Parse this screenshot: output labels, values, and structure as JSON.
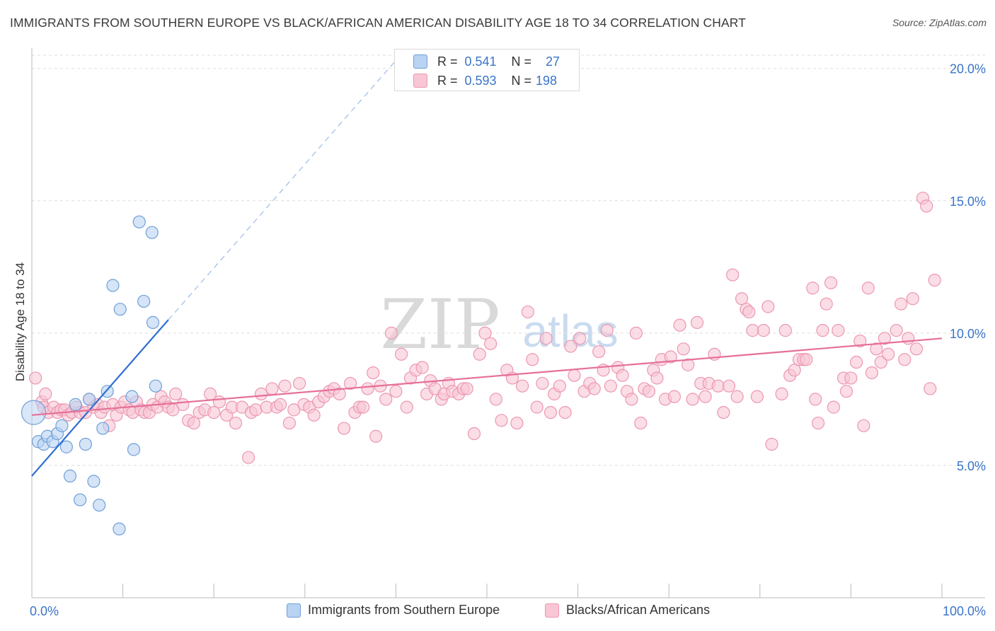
{
  "header": {
    "title": "IMMIGRANTS FROM SOUTHERN EUROPE VS BLACK/AFRICAN AMERICAN DISABILITY AGE 18 TO 34 CORRELATION CHART",
    "source": "Source: ZipAtlas.com"
  },
  "watermark": {
    "text_zip": "ZIP",
    "text_atlas": "atlas"
  },
  "legend": {
    "r_label": "R =",
    "n_label": "N =",
    "rows": [
      {
        "r": "0.541",
        "n": "27"
      },
      {
        "r": "0.593",
        "n": "198"
      }
    ]
  },
  "colors": {
    "blue_fill": "#b9d3f2",
    "blue_stroke": "#6f9fd8",
    "blue_line": "#2f6fd0",
    "pink_fill": "#f8c6d5",
    "pink_stroke": "#ec97b1",
    "pink_line": "#e66f98",
    "axis_value": "#3a74c9",
    "grid": "#dddddd"
  },
  "chart_data": {
    "type": "scatter",
    "title": "IMMIGRANTS FROM SOUTHERN EUROPE VS BLACK/AFRICAN AMERICAN DISABILITY AGE 18 TO 34 CORRELATION CHART",
    "xlabel": "",
    "ylabel": "Disability Age 18 to 34",
    "xlim": [
      0,
      100
    ],
    "ylim": [
      0,
      20.5
    ],
    "x_tick_labels": [
      {
        "value": 0,
        "label": "0.0%"
      },
      {
        "value": 100,
        "label": "100.0%"
      }
    ],
    "y_tick_labels": [
      {
        "value": 5,
        "label": "5.0%"
      },
      {
        "value": 10,
        "label": "10.0%"
      },
      {
        "value": 15,
        "label": "15.0%"
      },
      {
        "value": 20,
        "label": "20.0%"
      }
    ],
    "series": [
      {
        "name": "Immigrants from Southern Europe",
        "color": "blue",
        "points": [
          [
            0.2,
            7.0
          ],
          [
            0.7,
            5.9
          ],
          [
            1.3,
            5.8
          ],
          [
            1.7,
            6.1
          ],
          [
            2.3,
            5.9
          ],
          [
            2.8,
            6.2
          ],
          [
            3.3,
            6.5
          ],
          [
            3.8,
            5.7
          ],
          [
            4.2,
            4.6
          ],
          [
            4.8,
            7.3
          ],
          [
            5.3,
            3.7
          ],
          [
            5.9,
            5.8
          ],
          [
            6.3,
            7.5
          ],
          [
            6.8,
            4.4
          ],
          [
            7.4,
            3.5
          ],
          [
            7.8,
            6.4
          ],
          [
            8.3,
            7.8
          ],
          [
            9.6,
            2.6
          ],
          [
            9.7,
            10.9
          ],
          [
            11.0,
            7.6
          ],
          [
            11.2,
            5.6
          ],
          [
            11.8,
            14.2
          ],
          [
            12.3,
            11.2
          ],
          [
            13.2,
            13.8
          ],
          [
            13.3,
            10.4
          ],
          [
            13.6,
            8.0
          ],
          [
            8.9,
            11.8
          ]
        ],
        "trend_line": {
          "x": [
            0,
            15
          ],
          "y": [
            4.6,
            10.5
          ]
        },
        "trend_extension": {
          "x": [
            15,
            40
          ],
          "y": [
            10.5,
            20.3
          ]
        }
      },
      {
        "name": "Blacks/African Americans",
        "color": "pink",
        "points": [
          [
            0.4,
            8.3
          ],
          [
            1.1,
            7.4
          ],
          [
            1.3,
            7.2
          ],
          [
            1.5,
            7.7
          ],
          [
            1.8,
            7.0
          ],
          [
            2.4,
            7.2
          ],
          [
            2.8,
            7.0
          ],
          [
            3.2,
            7.1
          ],
          [
            3.6,
            7.1
          ],
          [
            4.0,
            6.9
          ],
          [
            4.4,
            7.0
          ],
          [
            4.9,
            7.2
          ],
          [
            5.3,
            7.0
          ],
          [
            5.9,
            7.0
          ],
          [
            6.3,
            7.5
          ],
          [
            6.8,
            7.2
          ],
          [
            7.2,
            7.3
          ],
          [
            7.6,
            7.0
          ],
          [
            8.0,
            7.2
          ],
          [
            8.5,
            6.5
          ],
          [
            8.9,
            7.3
          ],
          [
            9.3,
            6.9
          ],
          [
            9.8,
            7.2
          ],
          [
            10.2,
            7.4
          ],
          [
            10.7,
            7.1
          ],
          [
            11.1,
            7.0
          ],
          [
            11.5,
            7.4
          ],
          [
            12.0,
            7.1
          ],
          [
            12.4,
            7.0
          ],
          [
            12.9,
            7.0
          ],
          [
            13.3,
            7.3
          ],
          [
            13.8,
            7.2
          ],
          [
            14.2,
            7.6
          ],
          [
            14.6,
            7.4
          ],
          [
            15.0,
            7.2
          ],
          [
            15.5,
            7.1
          ],
          [
            15.8,
            7.7
          ],
          [
            16.6,
            7.3
          ],
          [
            17.2,
            6.7
          ],
          [
            17.8,
            6.6
          ],
          [
            18.4,
            7.0
          ],
          [
            19.0,
            7.1
          ],
          [
            19.6,
            7.7
          ],
          [
            20.0,
            7.0
          ],
          [
            20.6,
            7.4
          ],
          [
            21.4,
            6.9
          ],
          [
            22.0,
            7.2
          ],
          [
            22.4,
            6.6
          ],
          [
            23.1,
            7.2
          ],
          [
            23.8,
            5.3
          ],
          [
            24.1,
            7.0
          ],
          [
            24.6,
            7.1
          ],
          [
            25.2,
            7.7
          ],
          [
            25.8,
            7.2
          ],
          [
            26.4,
            7.9
          ],
          [
            26.9,
            7.2
          ],
          [
            27.3,
            7.3
          ],
          [
            27.8,
            8.0
          ],
          [
            28.3,
            6.6
          ],
          [
            28.8,
            7.1
          ],
          [
            29.4,
            8.1
          ],
          [
            29.9,
            7.3
          ],
          [
            30.5,
            7.2
          ],
          [
            31.0,
            6.9
          ],
          [
            31.5,
            7.4
          ],
          [
            32.1,
            7.6
          ],
          [
            32.7,
            7.8
          ],
          [
            33.2,
            7.9
          ],
          [
            33.8,
            7.7
          ],
          [
            34.3,
            6.4
          ],
          [
            35.0,
            8.1
          ],
          [
            35.5,
            7.0
          ],
          [
            36.0,
            7.2
          ],
          [
            36.4,
            7.2
          ],
          [
            36.9,
            7.9
          ],
          [
            37.5,
            8.5
          ],
          [
            37.8,
            6.1
          ],
          [
            38.3,
            8.0
          ],
          [
            38.9,
            7.5
          ],
          [
            39.5,
            10.0
          ],
          [
            40.0,
            7.8
          ],
          [
            40.6,
            9.2
          ],
          [
            41.2,
            7.2
          ],
          [
            41.6,
            8.3
          ],
          [
            42.2,
            8.6
          ],
          [
            42.9,
            8.7
          ],
          [
            43.4,
            7.7
          ],
          [
            43.8,
            8.2
          ],
          [
            44.3,
            7.9
          ],
          [
            45.0,
            7.5
          ],
          [
            45.3,
            7.7
          ],
          [
            45.8,
            8.1
          ],
          [
            46.2,
            7.8
          ],
          [
            46.9,
            7.7
          ],
          [
            47.4,
            7.9
          ],
          [
            47.8,
            7.9
          ],
          [
            48.6,
            6.2
          ],
          [
            49.2,
            9.2
          ],
          [
            49.8,
            10.0
          ],
          [
            50.4,
            9.6
          ],
          [
            51.0,
            7.5
          ],
          [
            51.6,
            6.7
          ],
          [
            52.2,
            8.6
          ],
          [
            52.8,
            8.3
          ],
          [
            53.3,
            6.6
          ],
          [
            53.9,
            8.0
          ],
          [
            54.5,
            10.8
          ],
          [
            55.0,
            9.0
          ],
          [
            55.5,
            7.2
          ],
          [
            56.1,
            8.1
          ],
          [
            56.5,
            9.8
          ],
          [
            57.0,
            7.0
          ],
          [
            57.4,
            7.7
          ],
          [
            58.0,
            8.0
          ],
          [
            58.6,
            7.0
          ],
          [
            59.2,
            9.5
          ],
          [
            59.6,
            8.4
          ],
          [
            60.2,
            9.8
          ],
          [
            60.7,
            7.8
          ],
          [
            61.3,
            8.1
          ],
          [
            61.8,
            7.9
          ],
          [
            62.3,
            9.3
          ],
          [
            62.8,
            8.6
          ],
          [
            63.2,
            10.1
          ],
          [
            63.6,
            8.0
          ],
          [
            64.4,
            8.7
          ],
          [
            64.9,
            8.4
          ],
          [
            65.4,
            7.8
          ],
          [
            65.9,
            7.5
          ],
          [
            66.4,
            10.0
          ],
          [
            66.9,
            6.6
          ],
          [
            67.3,
            7.9
          ],
          [
            67.8,
            7.8
          ],
          [
            68.3,
            8.6
          ],
          [
            68.7,
            8.3
          ],
          [
            69.2,
            9.0
          ],
          [
            69.6,
            7.5
          ],
          [
            70.2,
            9.1
          ],
          [
            70.6,
            7.6
          ],
          [
            71.2,
            10.3
          ],
          [
            71.6,
            9.4
          ],
          [
            72.1,
            8.8
          ],
          [
            72.6,
            7.5
          ],
          [
            73.1,
            10.4
          ],
          [
            73.5,
            8.1
          ],
          [
            74.0,
            7.6
          ],
          [
            74.4,
            8.1
          ],
          [
            75.0,
            9.2
          ],
          [
            75.4,
            8.0
          ],
          [
            76.0,
            7.0
          ],
          [
            76.6,
            8.0
          ],
          [
            77.0,
            12.2
          ],
          [
            77.5,
            7.6
          ],
          [
            78.0,
            11.3
          ],
          [
            78.5,
            10.9
          ],
          [
            78.8,
            10.8
          ],
          [
            79.2,
            10.1
          ],
          [
            79.7,
            7.6
          ],
          [
            80.4,
            10.1
          ],
          [
            80.9,
            11.0
          ],
          [
            81.3,
            5.8
          ],
          [
            82.4,
            7.7
          ],
          [
            82.8,
            10.1
          ],
          [
            83.3,
            8.4
          ],
          [
            83.8,
            8.6
          ],
          [
            84.3,
            9.0
          ],
          [
            84.8,
            9.0
          ],
          [
            85.1,
            9.0
          ],
          [
            85.8,
            11.7
          ],
          [
            86.1,
            7.5
          ],
          [
            86.4,
            6.6
          ],
          [
            86.9,
            10.1
          ],
          [
            87.3,
            11.1
          ],
          [
            87.8,
            11.9
          ],
          [
            88.1,
            7.2
          ],
          [
            88.6,
            10.1
          ],
          [
            89.2,
            8.3
          ],
          [
            89.5,
            7.8
          ],
          [
            90.0,
            8.3
          ],
          [
            90.6,
            8.9
          ],
          [
            91.0,
            9.7
          ],
          [
            91.4,
            6.5
          ],
          [
            91.9,
            11.7
          ],
          [
            92.3,
            8.5
          ],
          [
            92.8,
            9.4
          ],
          [
            93.3,
            8.9
          ],
          [
            93.7,
            9.8
          ],
          [
            94.1,
            9.2
          ],
          [
            95.0,
            10.1
          ],
          [
            95.5,
            11.1
          ],
          [
            95.9,
            9.0
          ],
          [
            96.3,
            9.8
          ],
          [
            96.8,
            11.3
          ],
          [
            97.2,
            9.4
          ],
          [
            97.9,
            15.1
          ],
          [
            98.3,
            14.8
          ],
          [
            98.7,
            7.9
          ],
          [
            99.2,
            12.0
          ]
        ],
        "trend_line": {
          "x": [
            0,
            100
          ],
          "y": [
            6.9,
            9.8
          ]
        }
      }
    ],
    "legend": [
      "Immigrants from Southern Europe",
      "Blacks/African Americans"
    ],
    "legend_placement": "bottom-center",
    "grid": true
  }
}
